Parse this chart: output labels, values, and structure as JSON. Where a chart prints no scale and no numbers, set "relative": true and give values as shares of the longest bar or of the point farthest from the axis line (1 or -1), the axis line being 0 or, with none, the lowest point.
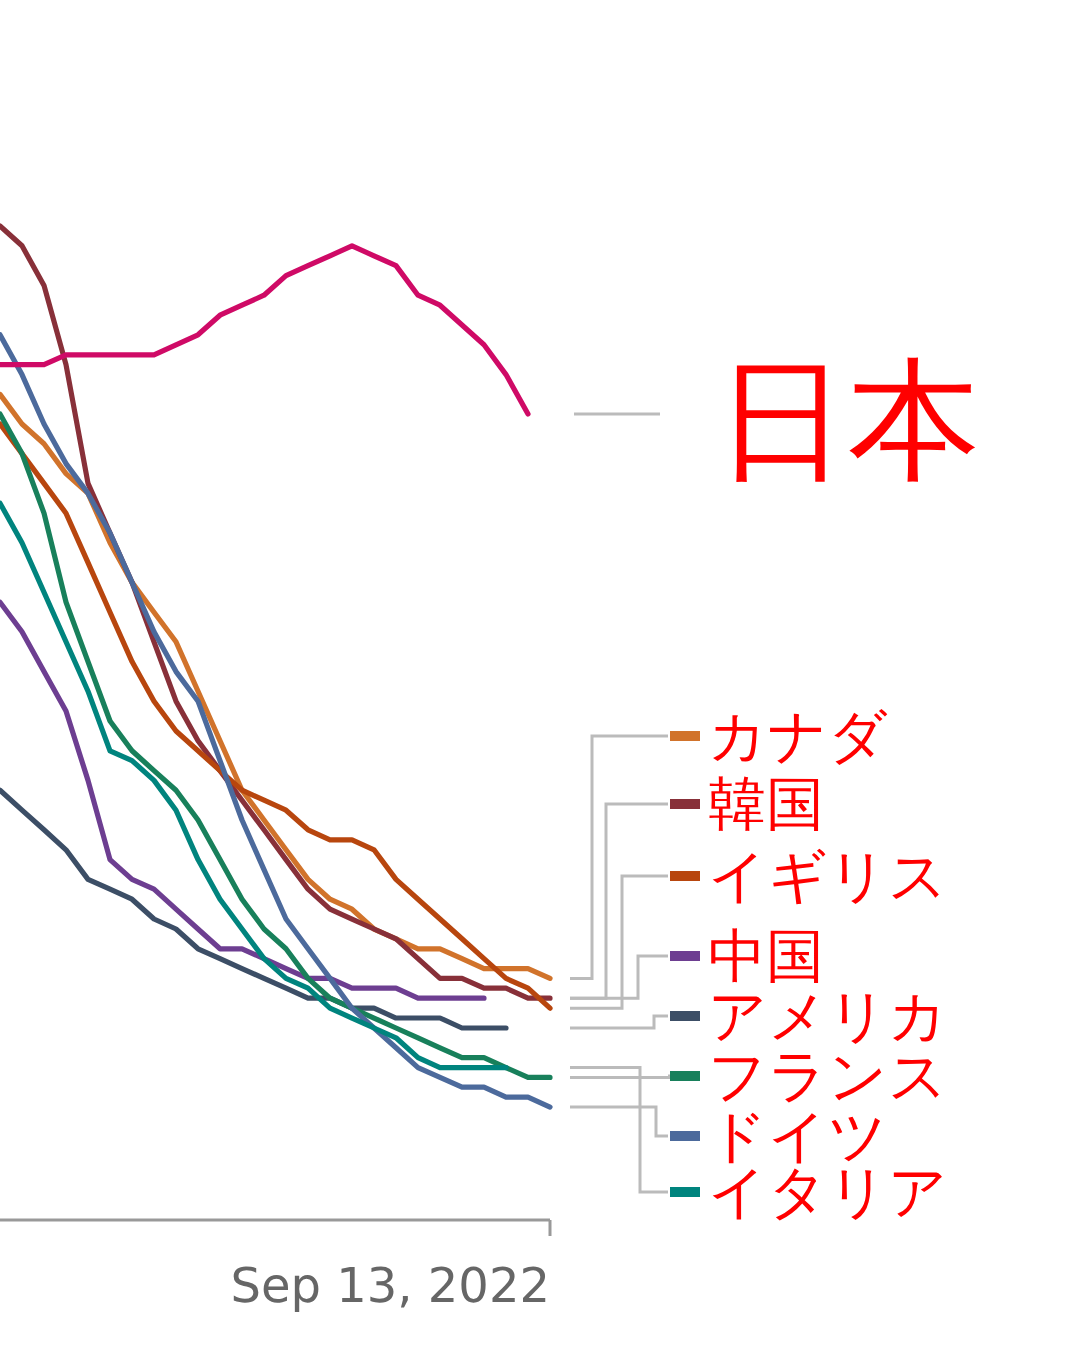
{
  "chart_data": {
    "type": "line",
    "relative": true,
    "legend": "right",
    "categories": [
      null,
      null,
      null,
      null,
      null,
      null,
      null,
      null,
      null,
      null,
      null,
      null,
      null,
      null,
      null,
      null,
      null,
      null,
      null,
      null,
      null,
      null,
      null,
      null,
      null,
      null
    ],
    "annotations": [
      "Sep 13, 2022"
    ],
    "series": [
      {
        "name": "カナダ",
        "color": "#d1732b",
        "values": [
          0.83,
          0.8,
          0.78,
          0.75,
          0.73,
          0.68,
          0.64,
          0.61,
          0.58,
          0.53,
          0.48,
          0.43,
          0.4,
          0.37,
          0.34,
          0.32,
          0.31,
          0.29,
          0.28,
          0.27,
          0.27,
          0.26,
          0.25,
          0.25,
          0.25,
          0.24
        ]
      },
      {
        "name": "韓国",
        "color": "#883039",
        "values": [
          1.0,
          0.98,
          0.94,
          0.86,
          0.74,
          0.69,
          0.64,
          0.58,
          0.52,
          0.48,
          0.45,
          0.42,
          0.39,
          0.36,
          0.33,
          0.31,
          0.3,
          0.29,
          0.28,
          0.26,
          0.24,
          0.24,
          0.23,
          0.23,
          0.22,
          0.22
        ]
      },
      {
        "name": "イギリス",
        "color": "#b8460e",
        "values": [
          0.8,
          0.77,
          0.74,
          0.71,
          0.66,
          0.61,
          0.56,
          0.52,
          0.49,
          0.47,
          0.45,
          0.43,
          0.42,
          0.41,
          0.39,
          0.38,
          0.38,
          0.37,
          0.34,
          0.32,
          0.3,
          0.28,
          0.26,
          0.24,
          0.23,
          0.21
        ]
      },
      {
        "name": "中国",
        "color": "#6d3e91",
        "values": [
          0.62,
          0.59,
          0.55,
          0.51,
          0.44,
          0.36,
          0.34,
          0.33,
          0.31,
          0.29,
          0.27,
          0.27,
          0.26,
          0.25,
          0.24,
          0.24,
          0.23,
          0.23,
          0.23,
          0.22,
          0.22,
          0.22,
          0.22,
          null,
          null,
          null
        ]
      },
      {
        "name": "アメリカ",
        "color": "#3c4e66",
        "values": [
          0.43,
          0.41,
          0.39,
          0.37,
          0.34,
          0.33,
          0.32,
          0.3,
          0.29,
          0.27,
          0.26,
          0.25,
          0.24,
          0.23,
          0.22,
          0.22,
          0.21,
          0.21,
          0.2,
          0.2,
          0.2,
          0.19,
          0.19,
          0.19,
          null,
          null
        ]
      },
      {
        "name": "フランス",
        "color": "#18805b",
        "values": [
          0.81,
          0.77,
          0.71,
          0.62,
          0.56,
          0.5,
          0.47,
          0.45,
          0.43,
          0.4,
          0.36,
          0.32,
          0.29,
          0.27,
          0.24,
          0.22,
          0.21,
          0.2,
          0.19,
          0.18,
          0.17,
          0.16,
          0.16,
          0.15,
          0.14,
          0.14
        ]
      },
      {
        "name": "ドイツ",
        "color": "#4c6a9c",
        "values": [
          0.89,
          0.85,
          0.8,
          0.76,
          0.73,
          0.69,
          0.64,
          0.59,
          0.55,
          0.52,
          0.46,
          0.4,
          0.35,
          0.3,
          0.27,
          0.24,
          0.21,
          0.19,
          0.17,
          0.15,
          0.14,
          0.13,
          0.13,
          0.12,
          0.12,
          0.11
        ]
      },
      {
        "name": "イタリア",
        "color": "#00847e",
        "values": [
          0.72,
          0.68,
          0.63,
          0.58,
          0.53,
          0.47,
          0.46,
          0.44,
          0.41,
          0.36,
          0.32,
          0.29,
          0.26,
          0.24,
          0.23,
          0.21,
          0.2,
          0.19,
          0.18,
          0.16,
          0.15,
          0.15,
          0.15,
          0.15,
          null,
          null
        ]
      },
      {
        "name": "日本",
        "color": "#cf0a66",
        "values": [
          0.86,
          0.86,
          0.86,
          0.87,
          0.87,
          0.87,
          0.87,
          0.87,
          0.88,
          0.89,
          0.91,
          0.92,
          0.93,
          0.95,
          0.96,
          0.97,
          0.98,
          0.97,
          0.96,
          0.93,
          0.92,
          0.9,
          0.88,
          0.85,
          0.81,
          null
        ]
      }
    ]
  }
}
